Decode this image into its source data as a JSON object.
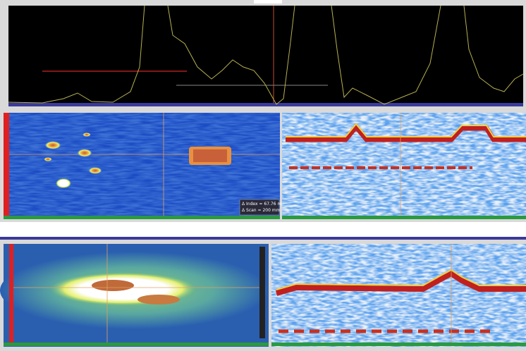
{
  "measurement": {
    "delta_index": "Δ Index = 67.76 mm",
    "delta_scan": "Δ Scan = 200 mm"
  }
}
